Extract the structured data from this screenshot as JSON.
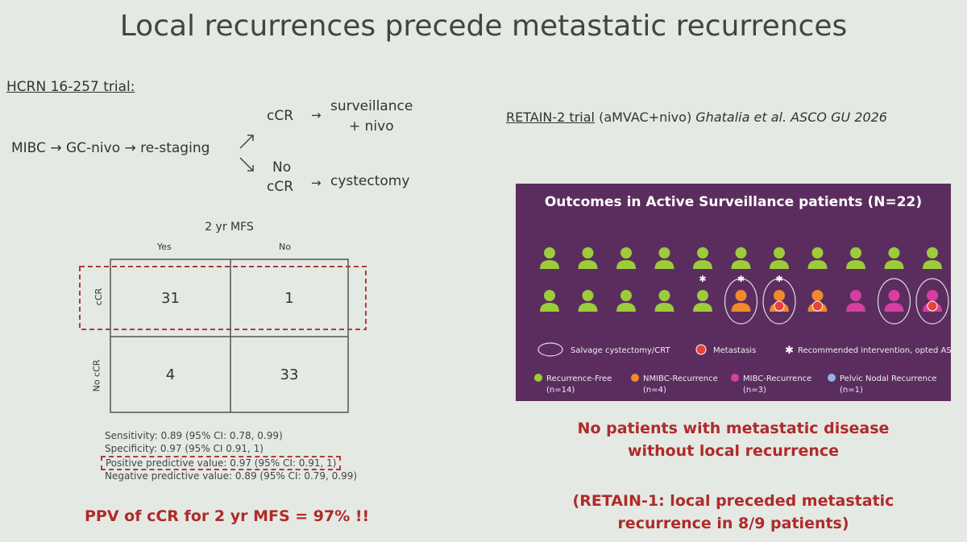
{
  "title": "Local recurrences precede metastatic recurrences",
  "left": {
    "trial": "HCRN 16-257 trial:",
    "flow": {
      "start": "MIBC → GC-nivo → re-staging",
      "branches": [
        {
          "label": [
            "cCR"
          ],
          "arrow": "→",
          "outcome": [
            "surveillance",
            "+ nivo"
          ]
        },
        {
          "label": [
            "No",
            "cCR"
          ],
          "arrow": "→",
          "outcome": [
            "cystectomy"
          ]
        }
      ]
    },
    "table": {
      "title": "2 yr MFS",
      "columns": [
        "Yes",
        "No"
      ],
      "rows": [
        {
          "label": "cCR",
          "cells": [
            "31",
            "1"
          ]
        },
        {
          "label": "No cCR",
          "cells": [
            "4",
            "33"
          ]
        }
      ]
    },
    "stats": [
      "Sensitivity: 0.89 (95% CI: 0.78, 0.99)",
      "Specificity: 0.97 (95% CI 0.91, 1)",
      "Positive predictive value: 0.97 (95% CI: 0.91, 1)",
      "Negative predictive value: 0.89 (95% CI: 0.79, 0.99)"
    ],
    "conclusion": "PPV of cCR for 2 yr MFS = 97% !!"
  },
  "right": {
    "trial": {
      "name": "RETAIN-2 trial",
      "detail": "(aMVAC+nivo)",
      "citation": "Ghatalia et al. ASCO GU 2026"
    },
    "panel": {
      "title": "Outcomes in Active Surveillance patients (N=22)",
      "markers": [
        "Salvage cystectomy/CRT",
        "Metastasis",
        "Recommended intervention, opted AS"
      ],
      "groups": [
        {
          "name": "Recurrence-Free",
          "n": "(n=14)"
        },
        {
          "name": "NMIBC-Recurrence",
          "n": "(n=4)"
        },
        {
          "name": "MIBC-Recurrence",
          "n": "(n=3)"
        },
        {
          "name": "Pelvic Nodal Recurrence",
          "n": "(n=1)"
        }
      ]
    },
    "conclusion": [
      "No patients with metastatic disease",
      "without local recurrence"
    ],
    "note": [
      "(RETAIN-1: local preceded metastatic",
      "recurrence in 8/9 patients)"
    ]
  }
}
